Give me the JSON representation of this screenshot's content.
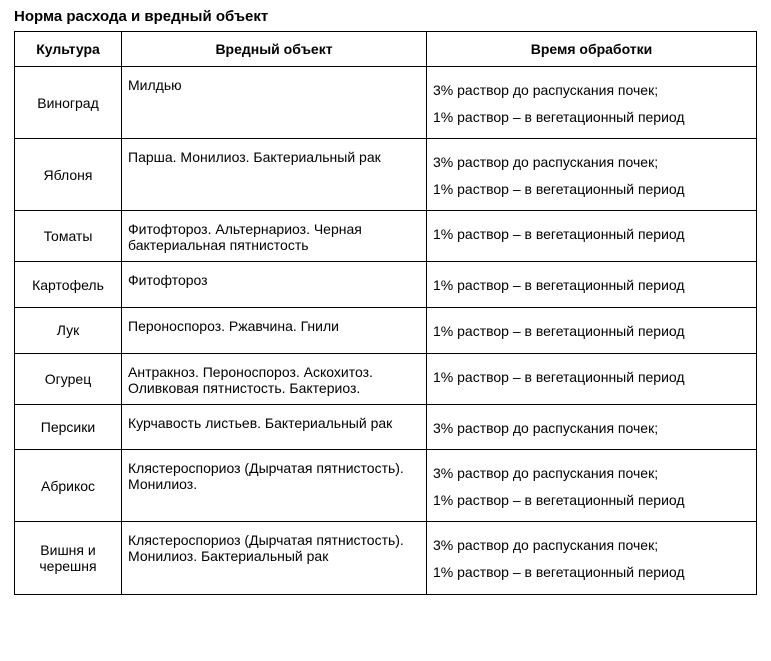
{
  "title": "Норма расхода и вредный объект",
  "columns": [
    "Культура",
    "Вредный объект",
    "Время обработки"
  ],
  "rows": [
    {
      "culture": "Виноград",
      "object": "Милдью",
      "time": "3% раствор до распускания почек;\n1% раствор – в вегетационный период"
    },
    {
      "culture": "Яблоня",
      "object": "Парша. Монилиоз. Бактериальный рак",
      "time": "3% раствор до распускания почек;\n1% раствор – в вегетационный период"
    },
    {
      "culture": "Томаты",
      "object": "Фитофтороз. Альтернариоз. Черная бактериальная пятнистость",
      "time": "1% раствор – в вегетационный период"
    },
    {
      "culture": "Картофель",
      "object": "Фитофтороз",
      "time": "1% раствор – в вегетационный период"
    },
    {
      "culture": "Лук",
      "object": "Пероноспороз. Ржавчина.  Гнили",
      "time": "1% раствор – в вегетационный период"
    },
    {
      "culture": "Огурец",
      "object": "Антракноз. Пероноспороз. Аскохитоз. Оливковая пятнистость. Бактериоз.",
      "time": "1% раствор – в вегетационный период"
    },
    {
      "culture": "Персики",
      "object": "Курчавость листьев. Бактериальный  рак",
      "time": "3% раствор до распускания почек;"
    },
    {
      "culture": "Абрикос",
      "object": " Клястероспориоз (Дырчатая пятнистость). Монилиоз.",
      "time": "3% раствор до распускания почек;\n1% раствор – в вегетационный период"
    },
    {
      "culture": "Вишня и черешня",
      "object": " Клястероспориоз (Дырчатая пятнистость). Монилиоз. Бактериальный  рак",
      "time": "3% раствор до распускания почек;\n1% раствор – в вегетационный период"
    }
  ]
}
